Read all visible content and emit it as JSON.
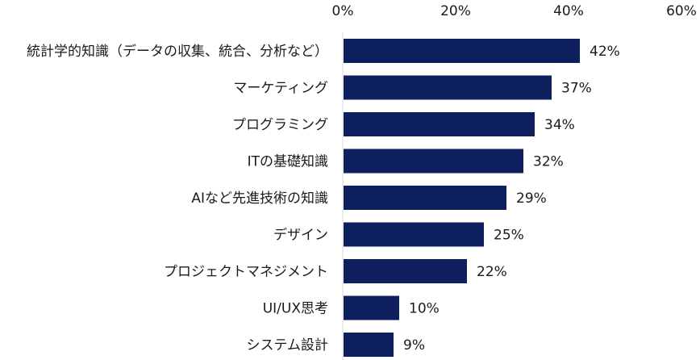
{
  "chart_data": {
    "type": "bar",
    "orientation": "horizontal",
    "categories": [
      "統計学的知識（データの収集、統合、分析など）",
      "マーケティング",
      "プログラミング",
      "ITの基礎知識",
      "AIなど先進技術の知識",
      "デザイン",
      "プロジェクトマネジメント",
      "UI/UX思考",
      "システム設計"
    ],
    "values": [
      42,
      37,
      34,
      32,
      29,
      25,
      22,
      10,
      9
    ],
    "value_labels": [
      "42%",
      "37%",
      "34%",
      "32%",
      "29%",
      "25%",
      "22%",
      "10%",
      "9%"
    ],
    "xlim": [
      0,
      60
    ],
    "xticks": [
      0,
      20,
      40,
      60
    ],
    "xtick_labels": [
      "0%",
      "20%",
      "40%",
      "60%"
    ],
    "x_axis_position": "top",
    "grid": false,
    "bar_color": "#0d1f5c",
    "axis_color": "#d9d9d9"
  }
}
